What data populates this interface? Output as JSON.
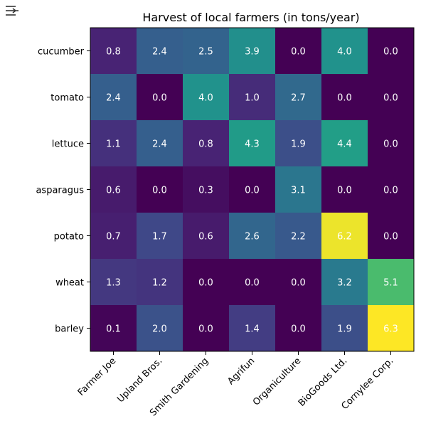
{
  "toolbar": {
    "menu_icon": "sliders-menu-icon"
  },
  "chart_data": {
    "type": "heatmap",
    "title": "Harvest of local farmers (in tons/year)",
    "xlabel": "",
    "ylabel": "",
    "colormap": "viridis",
    "vmin": 0.0,
    "vmax": 6.3,
    "x_categories": [
      "Farmer Joe",
      "Upland Bros.",
      "Smith Gardening",
      "Agrifun",
      "Organiculture",
      "BioGoods Ltd.",
      "Cornylee Corp."
    ],
    "y_categories": [
      "cucumber",
      "tomato",
      "lettuce",
      "asparagus",
      "potato",
      "wheat",
      "barley"
    ],
    "values": [
      [
        0.8,
        2.4,
        2.5,
        3.9,
        0.0,
        4.0,
        0.0
      ],
      [
        2.4,
        0.0,
        4.0,
        1.0,
        2.7,
        0.0,
        0.0
      ],
      [
        1.1,
        2.4,
        0.8,
        4.3,
        1.9,
        4.4,
        0.0
      ],
      [
        0.6,
        0.0,
        0.3,
        0.0,
        3.1,
        0.0,
        0.0
      ],
      [
        0.7,
        1.7,
        0.6,
        2.6,
        2.2,
        6.2,
        0.0
      ],
      [
        1.3,
        1.2,
        0.0,
        0.0,
        0.0,
        3.2,
        5.1
      ],
      [
        0.1,
        2.0,
        0.0,
        1.4,
        0.0,
        1.9,
        6.3
      ]
    ],
    "value_labels": [
      [
        "0.8",
        "2.4",
        "2.5",
        "3.9",
        "0.0",
        "4.0",
        "0.0"
      ],
      [
        "2.4",
        "0.0",
        "4.0",
        "1.0",
        "2.7",
        "0.0",
        "0.0"
      ],
      [
        "1.1",
        "2.4",
        "0.8",
        "4.3",
        "1.9",
        "4.4",
        "0.0"
      ],
      [
        "0.6",
        "0.0",
        "0.3",
        "0.0",
        "3.1",
        "0.0",
        "0.0"
      ],
      [
        "0.7",
        "1.7",
        "0.6",
        "2.6",
        "2.2",
        "6.2",
        "0.0"
      ],
      [
        "1.3",
        "1.2",
        "0.0",
        "0.0",
        "0.0",
        "3.2",
        "5.1"
      ],
      [
        "0.1",
        "2.0",
        "0.0",
        "1.4",
        "0.0",
        "1.9",
        "6.3"
      ]
    ],
    "label_color": "#ffffff",
    "grid": false
  }
}
